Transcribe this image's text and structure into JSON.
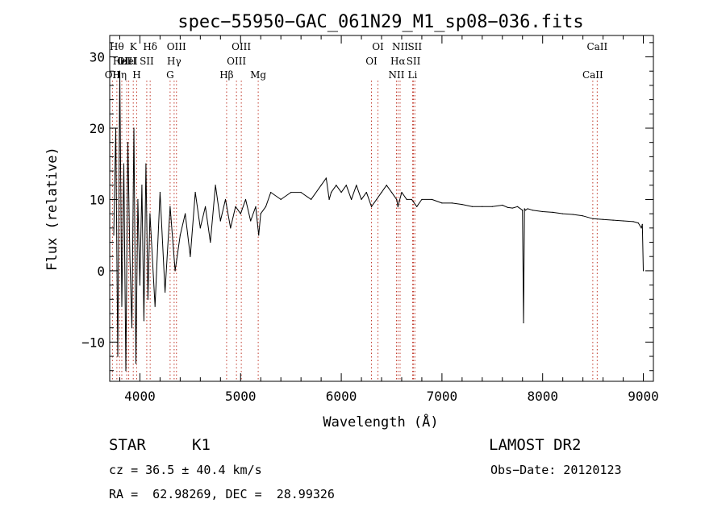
{
  "chart_data": {
    "type": "line",
    "title": "spec−55950−GAC_061N29_M1_sp08−036.fits",
    "xlabel": "Wavelength (Å)",
    "ylabel": "Flux (relative)",
    "xlim": [
      3700,
      9100
    ],
    "ylim": [
      -15.5,
      33
    ],
    "xticks": [
      4000,
      5000,
      6000,
      7000,
      8000,
      9000
    ],
    "yticks": [
      -10,
      0,
      10,
      20,
      30
    ],
    "ytick_labels": [
      "−10",
      "0",
      "10",
      "20",
      "30"
    ],
    "grid": false,
    "series": [
      {
        "x": [
          3740,
          3760,
          3780,
          3800,
          3820,
          3840,
          3860,
          3880,
          3900,
          3920,
          3940,
          3960,
          3980,
          4000,
          4020,
          4040,
          4060,
          4080,
          4100,
          4150,
          4200,
          4250,
          4300,
          4350,
          4400,
          4450,
          4500,
          4550,
          4600,
          4650,
          4700,
          4750,
          4800,
          4850,
          4900,
          4950,
          5000,
          5050,
          5100,
          5150,
          5180,
          5200,
          5250,
          5300,
          5400,
          5500,
          5600,
          5700,
          5800,
          5850,
          5880,
          5900,
          5950,
          6000,
          6050,
          6100,
          6150,
          6200,
          6250,
          6300,
          6350,
          6400,
          6450,
          6500,
          6550,
          6563,
          6600,
          6650,
          6700,
          6750,
          6800,
          6900,
          7000,
          7100,
          7200,
          7300,
          7400,
          7500,
          7600,
          7650,
          7700,
          7750,
          7800,
          7810,
          7820,
          7830,
          7850,
          7900,
          8000,
          8100,
          8200,
          8300,
          8400,
          8500,
          8600,
          8700,
          8800,
          8900,
          8950,
          8980,
          8990,
          9000
        ],
        "y": [
          5,
          20,
          -12,
          28,
          -5,
          15,
          -14,
          18,
          2,
          -8,
          20,
          -13,
          10,
          -2,
          12,
          -7,
          15,
          -4,
          8,
          -5,
          11,
          -3,
          9,
          0,
          5,
          8,
          2,
          11,
          6,
          9,
          4,
          12,
          7,
          10,
          6,
          9,
          8,
          10,
          7,
          9,
          5,
          8,
          9,
          11,
          10,
          11,
          11,
          10,
          12,
          13,
          10,
          11,
          12,
          11,
          12,
          10,
          12,
          10,
          11,
          9,
          10,
          11,
          12,
          11,
          10,
          9,
          11,
          10,
          10,
          9,
          10,
          10,
          9.5,
          9.5,
          9.3,
          9.0,
          9.0,
          9.0,
          9.2,
          8.9,
          8.8,
          9,
          8.5,
          -7.3,
          8.7,
          8.5,
          8.7,
          8.5,
          8.3,
          8.2,
          8.0,
          7.9,
          7.7,
          7.3,
          7.2,
          7.1,
          7.0,
          6.9,
          6.7,
          6.0,
          6.5,
          0
        ]
      }
    ],
    "line_markers": [
      {
        "wavelength": 3771,
        "label": "Hθ",
        "row": 0
      },
      {
        "wavelength": 3798,
        "label": "Hη",
        "row": 2
      },
      {
        "wavelength": 3820,
        "label": "HeI",
        "row": 1
      },
      {
        "wavelength": 3727,
        "label": "OII",
        "row": 2
      },
      {
        "wavelength": 3869,
        "label": "OIII",
        "row": 1
      },
      {
        "wavelength": 3889,
        "label": "HeI",
        "row": 1
      },
      {
        "wavelength": 3934,
        "label": "K",
        "row": 0
      },
      {
        "wavelength": 3968,
        "label": "H",
        "row": 2
      },
      {
        "wavelength": 4068,
        "label": "SII",
        "row": 1
      },
      {
        "wavelength": 4102,
        "label": "Hδ",
        "row": 0
      },
      {
        "wavelength": 4300,
        "label": "G",
        "row": 2
      },
      {
        "wavelength": 4340,
        "label": "Hγ",
        "row": 1
      },
      {
        "wavelength": 4363,
        "label": "OIII",
        "row": 0
      },
      {
        "wavelength": 4861,
        "label": "Hβ",
        "row": 2
      },
      {
        "wavelength": 4959,
        "label": "OIII",
        "row": 1
      },
      {
        "wavelength": 5007,
        "label": "OIII",
        "row": 0
      },
      {
        "wavelength": 5175,
        "label": "Mg",
        "row": 2
      },
      {
        "wavelength": 6300,
        "label": "OI",
        "row": 1
      },
      {
        "wavelength": 6364,
        "label": "OI",
        "row": 0
      },
      {
        "wavelength": 6548,
        "label": "NII",
        "row": 2
      },
      {
        "wavelength": 6563,
        "label": "Hα",
        "row": 1
      },
      {
        "wavelength": 6584,
        "label": "NII",
        "row": 0
      },
      {
        "wavelength": 6708,
        "label": "Li",
        "row": 2
      },
      {
        "wavelength": 6717,
        "label": "SII",
        "row": 1
      },
      {
        "wavelength": 6731,
        "label": "SII",
        "row": 0
      },
      {
        "wavelength": 8498,
        "label": "CaII",
        "row": 2
      },
      {
        "wavelength": 8542,
        "label": "CaII",
        "row": 0
      }
    ]
  },
  "info": {
    "object_class": "STAR",
    "subclass": "K1",
    "survey": "LAMOST DR2",
    "redshift": "cz = 36.5 ± 40.4 km/s",
    "obs_date": "Obs−Date: 20120123",
    "coords": "RA =  62.98269, DEC =  28.99326"
  }
}
